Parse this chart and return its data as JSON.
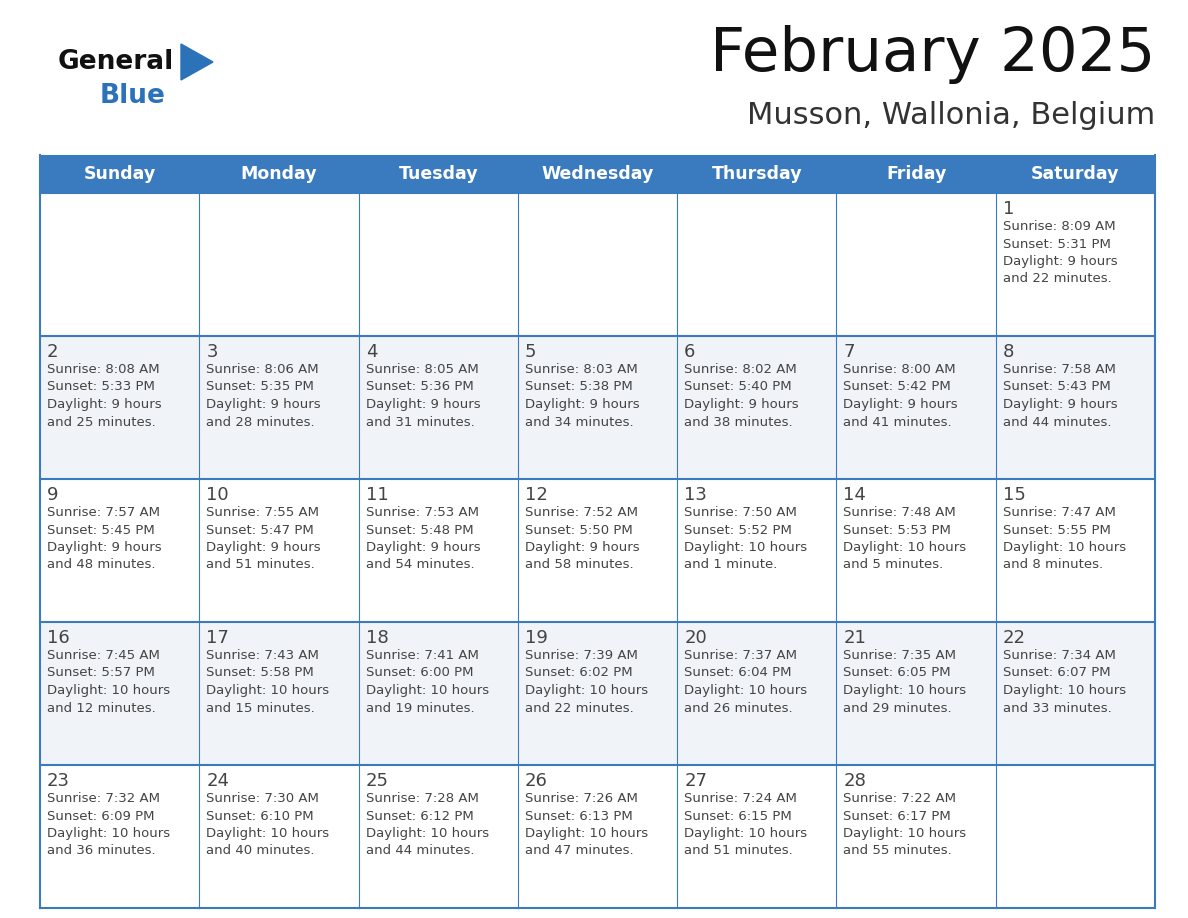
{
  "title": "February 2025",
  "subtitle": "Musson, Wallonia, Belgium",
  "header_color": "#3a7abf",
  "header_text_color": "#ffffff",
  "border_color": "#3a7abf",
  "text_color": "#444444",
  "day_number_color": "#444444",
  "cell_bg_even": "#f0f4f8",
  "cell_bg_odd": "#ffffff",
  "days_of_week": [
    "Sunday",
    "Monday",
    "Tuesday",
    "Wednesday",
    "Thursday",
    "Friday",
    "Saturday"
  ],
  "logo_general_color": "#111111",
  "logo_blue_color": "#2b72b8",
  "title_color": "#111111",
  "subtitle_color": "#333333",
  "calendar_data": [
    [
      null,
      null,
      null,
      null,
      null,
      null,
      {
        "day": "1",
        "sunrise": "8:09 AM",
        "sunset": "5:31 PM",
        "daylight1": "9 hours",
        "daylight2": "and 22 minutes."
      }
    ],
    [
      {
        "day": "2",
        "sunrise": "8:08 AM",
        "sunset": "5:33 PM",
        "daylight1": "9 hours",
        "daylight2": "and 25 minutes."
      },
      {
        "day": "3",
        "sunrise": "8:06 AM",
        "sunset": "5:35 PM",
        "daylight1": "9 hours",
        "daylight2": "and 28 minutes."
      },
      {
        "day": "4",
        "sunrise": "8:05 AM",
        "sunset": "5:36 PM",
        "daylight1": "9 hours",
        "daylight2": "and 31 minutes."
      },
      {
        "day": "5",
        "sunrise": "8:03 AM",
        "sunset": "5:38 PM",
        "daylight1": "9 hours",
        "daylight2": "and 34 minutes."
      },
      {
        "day": "6",
        "sunrise": "8:02 AM",
        "sunset": "5:40 PM",
        "daylight1": "9 hours",
        "daylight2": "and 38 minutes."
      },
      {
        "day": "7",
        "sunrise": "8:00 AM",
        "sunset": "5:42 PM",
        "daylight1": "9 hours",
        "daylight2": "and 41 minutes."
      },
      {
        "day": "8",
        "sunrise": "7:58 AM",
        "sunset": "5:43 PM",
        "daylight1": "9 hours",
        "daylight2": "and 44 minutes."
      }
    ],
    [
      {
        "day": "9",
        "sunrise": "7:57 AM",
        "sunset": "5:45 PM",
        "daylight1": "9 hours",
        "daylight2": "and 48 minutes."
      },
      {
        "day": "10",
        "sunrise": "7:55 AM",
        "sunset": "5:47 PM",
        "daylight1": "9 hours",
        "daylight2": "and 51 minutes."
      },
      {
        "day": "11",
        "sunrise": "7:53 AM",
        "sunset": "5:48 PM",
        "daylight1": "9 hours",
        "daylight2": "and 54 minutes."
      },
      {
        "day": "12",
        "sunrise": "7:52 AM",
        "sunset": "5:50 PM",
        "daylight1": "9 hours",
        "daylight2": "and 58 minutes."
      },
      {
        "day": "13",
        "sunrise": "7:50 AM",
        "sunset": "5:52 PM",
        "daylight1": "10 hours",
        "daylight2": "and 1 minute."
      },
      {
        "day": "14",
        "sunrise": "7:48 AM",
        "sunset": "5:53 PM",
        "daylight1": "10 hours",
        "daylight2": "and 5 minutes."
      },
      {
        "day": "15",
        "sunrise": "7:47 AM",
        "sunset": "5:55 PM",
        "daylight1": "10 hours",
        "daylight2": "and 8 minutes."
      }
    ],
    [
      {
        "day": "16",
        "sunrise": "7:45 AM",
        "sunset": "5:57 PM",
        "daylight1": "10 hours",
        "daylight2": "and 12 minutes."
      },
      {
        "day": "17",
        "sunrise": "7:43 AM",
        "sunset": "5:58 PM",
        "daylight1": "10 hours",
        "daylight2": "and 15 minutes."
      },
      {
        "day": "18",
        "sunrise": "7:41 AM",
        "sunset": "6:00 PM",
        "daylight1": "10 hours",
        "daylight2": "and 19 minutes."
      },
      {
        "day": "19",
        "sunrise": "7:39 AM",
        "sunset": "6:02 PM",
        "daylight1": "10 hours",
        "daylight2": "and 22 minutes."
      },
      {
        "day": "20",
        "sunrise": "7:37 AM",
        "sunset": "6:04 PM",
        "daylight1": "10 hours",
        "daylight2": "and 26 minutes."
      },
      {
        "day": "21",
        "sunrise": "7:35 AM",
        "sunset": "6:05 PM",
        "daylight1": "10 hours",
        "daylight2": "and 29 minutes."
      },
      {
        "day": "22",
        "sunrise": "7:34 AM",
        "sunset": "6:07 PM",
        "daylight1": "10 hours",
        "daylight2": "and 33 minutes."
      }
    ],
    [
      {
        "day": "23",
        "sunrise": "7:32 AM",
        "sunset": "6:09 PM",
        "daylight1": "10 hours",
        "daylight2": "and 36 minutes."
      },
      {
        "day": "24",
        "sunrise": "7:30 AM",
        "sunset": "6:10 PM",
        "daylight1": "10 hours",
        "daylight2": "and 40 minutes."
      },
      {
        "day": "25",
        "sunrise": "7:28 AM",
        "sunset": "6:12 PM",
        "daylight1": "10 hours",
        "daylight2": "and 44 minutes."
      },
      {
        "day": "26",
        "sunrise": "7:26 AM",
        "sunset": "6:13 PM",
        "daylight1": "10 hours",
        "daylight2": "and 47 minutes."
      },
      {
        "day": "27",
        "sunrise": "7:24 AM",
        "sunset": "6:15 PM",
        "daylight1": "10 hours",
        "daylight2": "and 51 minutes."
      },
      {
        "day": "28",
        "sunrise": "7:22 AM",
        "sunset": "6:17 PM",
        "daylight1": "10 hours",
        "daylight2": "and 55 minutes."
      },
      null
    ]
  ]
}
